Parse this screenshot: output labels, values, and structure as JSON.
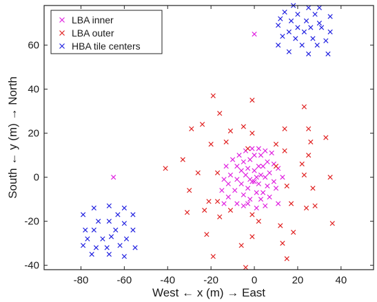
{
  "chart_data": {
    "type": "scatter",
    "title": "",
    "xlabel": "West ← x (m) → East",
    "ylabel": "South ← y (m) → North",
    "xlim": [
      -97,
      55
    ],
    "ylim": [
      -42,
      78
    ],
    "xticks": [
      -80,
      -60,
      -40,
      -20,
      0,
      20,
      40
    ],
    "yticks": [
      -40,
      -20,
      0,
      20,
      40,
      60
    ],
    "marker": "x",
    "legend": {
      "position": "top-left"
    },
    "series": [
      {
        "name": "LBA inner",
        "color": "#e020e0",
        "points": [
          [
            -65,
            0
          ],
          [
            0,
            65
          ],
          [
            -1,
            13
          ],
          [
            2,
            13
          ],
          [
            -4,
            12
          ],
          [
            5,
            12
          ],
          [
            -7,
            10
          ],
          [
            0,
            10
          ],
          [
            3,
            10
          ],
          [
            8,
            11
          ],
          [
            -2,
            8
          ],
          [
            -10,
            8
          ],
          [
            -5,
            7
          ],
          [
            6,
            7
          ],
          [
            9,
            6
          ],
          [
            -13,
            5
          ],
          [
            -8,
            5
          ],
          [
            2,
            5
          ],
          [
            4,
            5
          ],
          [
            -3,
            4
          ],
          [
            11,
            4
          ],
          [
            -6,
            3
          ],
          [
            0,
            3
          ],
          [
            7,
            2
          ],
          [
            -11,
            1
          ],
          [
            -4,
            1
          ],
          [
            1,
            0
          ],
          [
            3,
            1
          ],
          [
            5,
            0
          ],
          [
            13,
            0
          ],
          [
            -14,
            -1
          ],
          [
            -8,
            -1
          ],
          [
            -2,
            -1
          ],
          [
            -1,
            -2
          ],
          [
            0,
            -2
          ],
          [
            9,
            -2
          ],
          [
            -12,
            -3
          ],
          [
            -6,
            -3
          ],
          [
            2,
            -3
          ],
          [
            6,
            -4
          ],
          [
            -3,
            -5
          ],
          [
            10,
            -5
          ],
          [
            -15,
            -6
          ],
          [
            -9,
            -6
          ],
          [
            1,
            -7
          ],
          [
            4,
            -7
          ],
          [
            -5,
            -8
          ],
          [
            -12,
            -9
          ],
          [
            7,
            -9
          ],
          [
            -2,
            -10
          ],
          [
            3,
            -10
          ],
          [
            -8,
            -12
          ],
          [
            -14,
            -12
          ],
          [
            -5,
            -13
          ],
          [
            5,
            -13
          ],
          [
            1,
            -14
          ],
          [
            11,
            -12
          ],
          [
            -3,
            -12
          ]
        ]
      },
      {
        "name": "LBA outer",
        "color": "#e02020",
        "points": [
          [
            -19,
            37
          ],
          [
            -1,
            35
          ],
          [
            23,
            32
          ],
          [
            -16,
            29
          ],
          [
            -29,
            22
          ],
          [
            -24,
            24
          ],
          [
            -11,
            21
          ],
          [
            -5,
            23
          ],
          [
            14,
            22
          ],
          [
            25,
            22
          ],
          [
            -1,
            20
          ],
          [
            -13,
            16
          ],
          [
            -20,
            15
          ],
          [
            26,
            16
          ],
          [
            33,
            18
          ],
          [
            10,
            15
          ],
          [
            -3,
            13
          ],
          [
            14,
            12
          ],
          [
            25,
            10
          ],
          [
            -33,
            8
          ],
          [
            -41,
            4
          ],
          [
            10,
            5
          ],
          [
            22,
            6
          ],
          [
            -26,
            2
          ],
          [
            -17,
            2
          ],
          [
            23,
            1
          ],
          [
            35,
            0
          ],
          [
            -30,
            -6
          ],
          [
            15,
            -4
          ],
          [
            27,
            -5
          ],
          [
            -21,
            -11
          ],
          [
            -17,
            -11
          ],
          [
            -11,
            -15
          ],
          [
            17,
            -12
          ],
          [
            24,
            -14
          ],
          [
            28,
            -13
          ],
          [
            -31,
            -16
          ],
          [
            -23,
            -15
          ],
          [
            -16,
            -18
          ],
          [
            -1,
            -17
          ],
          [
            2,
            -20
          ],
          [
            12,
            -22
          ],
          [
            36,
            -21
          ],
          [
            -22,
            -26
          ],
          [
            -1,
            -27
          ],
          [
            13,
            -30
          ],
          [
            18,
            -25
          ],
          [
            -6,
            -31
          ],
          [
            -19,
            -36
          ],
          [
            -4,
            -41
          ],
          [
            15,
            -37
          ]
        ]
      },
      {
        "name": "HBA tile centers",
        "color": "#2020e0",
        "points": [
          [
            -67,
            -13
          ],
          [
            -74,
            -14
          ],
          [
            -60,
            -14
          ],
          [
            -79,
            -17
          ],
          [
            -63,
            -17
          ],
          [
            -56,
            -17
          ],
          [
            -72,
            -20
          ],
          [
            -67,
            -20
          ],
          [
            -60,
            -21
          ],
          [
            -78,
            -24
          ],
          [
            -74,
            -24
          ],
          [
            -64,
            -24
          ],
          [
            -56,
            -24
          ],
          [
            -70,
            -28
          ],
          [
            -66,
            -27
          ],
          [
            -59,
            -28
          ],
          [
            -77,
            -28
          ],
          [
            -73,
            -32
          ],
          [
            -68,
            -32
          ],
          [
            -62,
            -31
          ],
          [
            -55,
            -32
          ],
          [
            -79,
            -31
          ],
          [
            -75,
            -35
          ],
          [
            -67,
            -35
          ],
          [
            -60,
            -36
          ],
          [
            18,
            78
          ],
          [
            25,
            77
          ],
          [
            30,
            77
          ],
          [
            14,
            75
          ],
          [
            20,
            74
          ],
          [
            28,
            74
          ],
          [
            35,
            73
          ],
          [
            12,
            72
          ],
          [
            17,
            71
          ],
          [
            24,
            71
          ],
          [
            30,
            70
          ],
          [
            11,
            69
          ],
          [
            20,
            68
          ],
          [
            26,
            68
          ],
          [
            31,
            68
          ],
          [
            16,
            66
          ],
          [
            23,
            66
          ],
          [
            35,
            66
          ],
          [
            13,
            64
          ],
          [
            19,
            63
          ],
          [
            27,
            63
          ],
          [
            33,
            62
          ],
          [
            11,
            60
          ],
          [
            22,
            60
          ],
          [
            29,
            60
          ],
          [
            16,
            57
          ],
          [
            25,
            56
          ],
          [
            34,
            56
          ]
        ]
      }
    ]
  }
}
